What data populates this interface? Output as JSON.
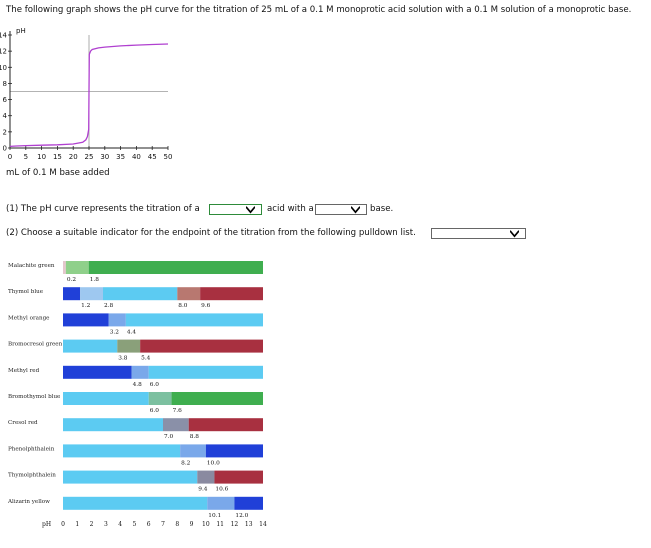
{
  "question": {
    "intro": "The following graph shows the pH curve for the titration of 25 mL of a 0.1 M monoprotic acid solution with a 0.1 M solution of a monoprotic base.",
    "q1_prefix": "(1) The pH curve represents the titration of a",
    "q1_middle": "acid with a",
    "q1_suffix": "base.",
    "q2": "(2) Choose a suitable indicator for the endpoint of the titration from the following pulldown list.",
    "dropdown_acid_value": "",
    "dropdown_base_value": "",
    "dropdown_indicator_value": ""
  },
  "chart_data": [
    {
      "type": "line",
      "title": "",
      "ylabel": "pH",
      "xlabel": "mL of 0.1 M base added",
      "xlim": [
        0,
        50
      ],
      "ylim": [
        0,
        14
      ],
      "xticks": [
        "0",
        "5",
        "10",
        "15",
        "20",
        "25",
        "30",
        "35",
        "40",
        "45",
        "50"
      ],
      "yticks": [
        "0",
        "2",
        "4",
        "6",
        "8",
        "10",
        "12",
        "14"
      ],
      "reference_lines": {
        "vertical_x": 25,
        "horizontal_y": 7
      },
      "series": [
        {
          "color": "#b040d0",
          "x": [
            0,
            2,
            5,
            10,
            15,
            20,
            23,
            24,
            24.5,
            24.9,
            25,
            25.1,
            25.5,
            26,
            28,
            30,
            35,
            40,
            45,
            50
          ],
          "y": [
            0.2,
            0.25,
            0.3,
            0.35,
            0.4,
            0.5,
            0.7,
            1.0,
            1.4,
            2.3,
            7,
            11.6,
            12.0,
            12.2,
            12.4,
            12.5,
            12.65,
            12.75,
            12.82,
            12.88
          ]
        }
      ]
    },
    {
      "type": "table",
      "xlabel": "pH",
      "xticks": [
        "0",
        "1",
        "2",
        "3",
        "4",
        "5",
        "6",
        "7",
        "8",
        "9",
        "10",
        "11",
        "12",
        "13",
        "14"
      ],
      "indicators": [
        {
          "name": "Malachite green",
          "segments": [
            {
              "from": 0,
              "to": 0.2,
              "color": "#e4c6cc"
            },
            {
              "from": 0.2,
              "to": 1.8,
              "color": "#8fd08a"
            },
            {
              "from": 1.8,
              "to": 14,
              "color": "#3fae4f"
            }
          ],
          "range_labels": [
            "0.2",
            "1.8"
          ]
        },
        {
          "name": "Thymol blue",
          "segments": [
            {
              "from": 0,
              "to": 1.2,
              "color": "#2040d8"
            },
            {
              "from": 1.2,
              "to": 2.8,
              "color": "#9ec8f0"
            },
            {
              "from": 2.8,
              "to": 8.0,
              "color": "#5ccbf2"
            },
            {
              "from": 8.0,
              "to": 9.6,
              "color": "#b87870"
            },
            {
              "from": 9.6,
              "to": 14,
              "color": "#a83040"
            }
          ],
          "range_labels": [
            "1.2",
            "2.8",
            "8.0",
            "9.6"
          ]
        },
        {
          "name": "Methyl orange",
          "segments": [
            {
              "from": 0,
              "to": 3.2,
              "color": "#2040d8"
            },
            {
              "from": 3.2,
              "to": 4.4,
              "color": "#7aa8ea"
            },
            {
              "from": 4.4,
              "to": 14,
              "color": "#5ccbf2"
            }
          ],
          "range_labels": [
            "3.2",
            "4.4"
          ]
        },
        {
          "name": "Bromocresol green",
          "segments": [
            {
              "from": 0,
              "to": 3.8,
              "color": "#5ccbf2"
            },
            {
              "from": 3.8,
              "to": 5.4,
              "color": "#8aa07a"
            },
            {
              "from": 5.4,
              "to": 14,
              "color": "#a83040"
            }
          ],
          "range_labels": [
            "3.8",
            "5.4"
          ]
        },
        {
          "name": "Methyl red",
          "segments": [
            {
              "from": 0,
              "to": 4.8,
              "color": "#2040d8"
            },
            {
              "from": 4.8,
              "to": 6.0,
              "color": "#7aa8ea"
            },
            {
              "from": 6.0,
              "to": 14,
              "color": "#5ccbf2"
            }
          ],
          "range_labels": [
            "4.8",
            "6.0"
          ]
        },
        {
          "name": "Bromothymol blue",
          "segments": [
            {
              "from": 0,
              "to": 6.0,
              "color": "#5ccbf2"
            },
            {
              "from": 6.0,
              "to": 7.6,
              "color": "#7cc0a0"
            },
            {
              "from": 7.6,
              "to": 14,
              "color": "#3fae4f"
            }
          ],
          "range_labels": [
            "6.0",
            "7.6"
          ]
        },
        {
          "name": "Cresol red",
          "segments": [
            {
              "from": 0,
              "to": 7.0,
              "color": "#5ccbf2"
            },
            {
              "from": 7.0,
              "to": 8.8,
              "color": "#8a90a8"
            },
            {
              "from": 8.8,
              "to": 14,
              "color": "#a83040"
            }
          ],
          "range_labels": [
            "7.0",
            "8.8"
          ]
        },
        {
          "name": "Phenolphthalein",
          "segments": [
            {
              "from": 0,
              "to": 8.2,
              "color": "#5ccbf2"
            },
            {
              "from": 8.2,
              "to": 10.0,
              "color": "#7aa8ea"
            },
            {
              "from": 10.0,
              "to": 14,
              "color": "#2040d8"
            }
          ],
          "range_labels": [
            "8.2",
            "10.0"
          ]
        },
        {
          "name": "Thymolphthalein",
          "segments": [
            {
              "from": 0,
              "to": 9.4,
              "color": "#5ccbf2"
            },
            {
              "from": 9.4,
              "to": 10.6,
              "color": "#8a8aa0"
            },
            {
              "from": 10.6,
              "to": 14,
              "color": "#a83040"
            }
          ],
          "range_labels": [
            "9.4",
            "10.6"
          ]
        },
        {
          "name": "Alizarin yellow",
          "segments": [
            {
              "from": 0,
              "to": 10.1,
              "color": "#5ccbf2"
            },
            {
              "from": 10.1,
              "to": 12.0,
              "color": "#7aa8ea"
            },
            {
              "from": 12.0,
              "to": 14,
              "color": "#2040d8"
            }
          ],
          "range_labels": [
            "10.1",
            "12.0"
          ]
        }
      ]
    }
  ]
}
